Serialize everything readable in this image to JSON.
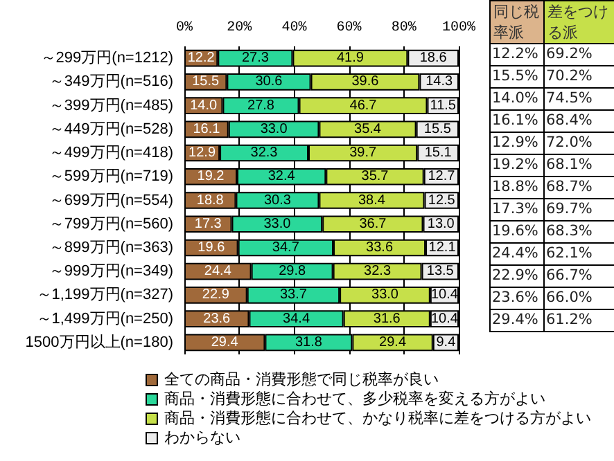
{
  "chart_data": [
    {
      "type": "bar",
      "orientation": "horizontal",
      "stacked": true,
      "grid": "x",
      "legend": "bottom",
      "categories": [
        "～299万円(n=1212)",
        "～349万円(n=516)",
        "～399万円(n=485)",
        "～449万円(n=528)",
        "～499万円(n=418)",
        "～599万円(n=719)",
        "～699万円(n=554)",
        "～799万円(n=560)",
        "～899万円(n=363)",
        "～999万円(n=349)",
        "～1,199万円(n=327)",
        "～1,499万円(n=250)",
        "1500万円以上(n=180)"
      ],
      "xlim": [
        0,
        100
      ],
      "xticks": [
        {
          "value": 0,
          "label": "0%"
        },
        {
          "value": 20,
          "label": "20%"
        },
        {
          "value": 40,
          "label": "40%"
        },
        {
          "value": 60,
          "label": "60%"
        },
        {
          "value": 80,
          "label": "80%"
        },
        {
          "value": 100,
          "label": "100%"
        }
      ],
      "series": [
        {
          "name": "全ての商品・消費形態で同じ税率が良い",
          "color": "#a0693a",
          "values": [
            12.2,
            15.5,
            14.0,
            16.1,
            12.9,
            19.2,
            18.8,
            17.3,
            19.6,
            24.4,
            22.9,
            23.6,
            29.4
          ],
          "value_labels": [
            "12.2",
            "15.5",
            "14.0",
            "16.1",
            "12.9",
            "19.2",
            "18.8",
            "17.3",
            "19.6",
            "24.4",
            "22.9",
            "23.6",
            "29.4"
          ]
        },
        {
          "name": "商品・消費形態に合わせて、多少税率を変える方がよい",
          "color": "#2ad89a",
          "values": [
            27.3,
            30.6,
            27.8,
            33.0,
            32.3,
            32.4,
            30.3,
            33.0,
            34.7,
            29.8,
            33.7,
            34.4,
            31.8
          ],
          "value_labels": [
            "27.3",
            "30.6",
            "27.8",
            "33.0",
            "32.3",
            "32.4",
            "30.3",
            "33.0",
            "34.7",
            "29.8",
            "33.7",
            "34.4",
            "31.8"
          ]
        },
        {
          "name": "商品・消費形態に合わせて、かなり税率に差をつける方がよい",
          "color": "#c6e04a",
          "values": [
            41.9,
            39.6,
            46.7,
            35.4,
            39.7,
            35.7,
            38.4,
            36.7,
            33.6,
            32.3,
            33.0,
            31.6,
            29.4
          ],
          "value_labels": [
            "41.9",
            "39.6",
            "46.7",
            "35.4",
            "39.7",
            "35.7",
            "38.4",
            "36.7",
            "33.6",
            "32.3",
            "33.0",
            "31.6",
            "29.4"
          ]
        },
        {
          "name": "わからない",
          "color": "#ececec",
          "values": [
            18.6,
            14.3,
            11.5,
            15.5,
            15.1,
            12.7,
            12.5,
            13.0,
            12.1,
            13.5,
            10.4,
            10.4,
            9.4
          ],
          "value_labels": [
            "18.6",
            "14.3",
            "11.5",
            "15.5",
            "15.1",
            "12.7",
            "12.5",
            "13.0",
            "12.1",
            "13.5",
            "10.4",
            "10.4",
            "9.4"
          ]
        }
      ]
    },
    {
      "type": "other",
      "categories": [
        "同じ税率派",
        "差をつける派"
      ],
      "colors": [
        "#dcb48c",
        "#c6e04a"
      ],
      "series": [
        {
          "values": [
            12.2,
            69.2
          ],
          "value_labels": [
            "12.2%",
            "69.2%"
          ]
        },
        {
          "values": [
            15.5,
            70.2
          ],
          "value_labels": [
            "15.5%",
            "70.2%"
          ]
        },
        {
          "values": [
            14.0,
            74.5
          ],
          "value_labels": [
            "14.0%",
            "74.5%"
          ]
        },
        {
          "values": [
            16.1,
            68.4
          ],
          "value_labels": [
            "16.1%",
            "68.4%"
          ]
        },
        {
          "values": [
            12.9,
            72.0
          ],
          "value_labels": [
            "12.9%",
            "72.0%"
          ]
        },
        {
          "values": [
            19.2,
            68.1
          ],
          "value_labels": [
            "19.2%",
            "68.1%"
          ]
        },
        {
          "values": [
            18.8,
            68.7
          ],
          "value_labels": [
            "18.8%",
            "68.7%"
          ]
        },
        {
          "values": [
            17.3,
            69.7
          ],
          "value_labels": [
            "17.3%",
            "69.7%"
          ]
        },
        {
          "values": [
            19.6,
            68.3
          ],
          "value_labels": [
            "19.6%",
            "68.3%"
          ]
        },
        {
          "values": [
            24.4,
            62.1
          ],
          "value_labels": [
            "24.4%",
            "62.1%"
          ]
        },
        {
          "values": [
            22.9,
            66.7
          ],
          "value_labels": [
            "22.9%",
            "66.7%"
          ]
        },
        {
          "values": [
            23.6,
            66.0
          ],
          "value_labels": [
            "23.6%",
            "66.0%"
          ]
        },
        {
          "values": [
            29.4,
            61.2
          ],
          "value_labels": [
            "29.4%",
            "61.2%"
          ]
        }
      ]
    }
  ]
}
